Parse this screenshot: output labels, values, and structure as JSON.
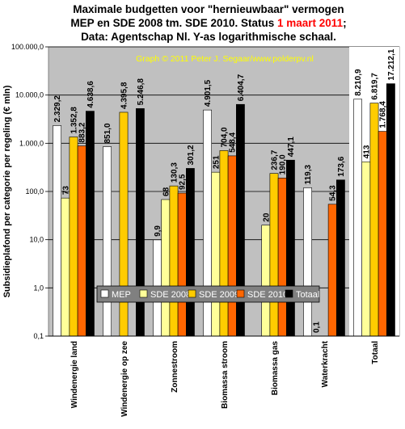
{
  "chart_data": {
    "type": "bar",
    "title_lines": [
      [
        {
          "text": "Maximale budgetten voor \"hernieuwbaar\" vermogen",
          "color": "#000000"
        }
      ],
      [
        {
          "text": "MEP en SDE 2008 tm. SDE 2010. Status ",
          "color": "#000000"
        },
        {
          "text": "1 maart 2011",
          "color": "#ff0000"
        },
        {
          "text": ";",
          "color": "#000000"
        }
      ],
      [
        {
          "text": "Data: Agentschap Nl. Y-as logarithmische schaal.",
          "color": "#000000"
        }
      ]
    ],
    "watermark": "Graph © 2011 Peter J. Segaar/www.polderpv.nl",
    "ylabel": "Subsidieplafond per categorie per regeling (€ mln)",
    "xlabel": "",
    "yscale": "log",
    "ylim": [
      0.1,
      100000
    ],
    "ytick_values": [
      0.1,
      1,
      10,
      100,
      1000,
      10000,
      100000
    ],
    "ytick_labels": [
      "0,1",
      "1,0",
      "10,0",
      "100,0",
      "1.000,0",
      "10.000,0",
      "100.000,0"
    ],
    "grid": true,
    "categories": [
      "Windenergie land",
      "Windenergie op zee",
      "Zonnestroom",
      "Biomassa stroom",
      "Biomassa gas",
      "Waterkracht",
      "Totaal"
    ],
    "series": [
      {
        "name": "MEP",
        "color": "#ffffff",
        "values": [
          2329.2,
          851.0,
          9.9,
          4901.5,
          null,
          119.3,
          8210.9
        ],
        "labels": [
          "2.329,2",
          "851,0",
          "9,9",
          "4.901,5",
          "",
          "119,3",
          "8.210,9"
        ]
      },
      {
        "name": "SDE 2008",
        "color": "#ffff99",
        "values": [
          73,
          null,
          68,
          251,
          20,
          0.1,
          413
        ],
        "labels": [
          "73",
          "",
          "68",
          "251",
          "20",
          "0,1",
          "413"
        ]
      },
      {
        "name": "SDE 2009",
        "color": "#ffcc00",
        "values": [
          1352.8,
          4395.8,
          130.3,
          704.0,
          236.7,
          null,
          6819.7
        ],
        "labels": [
          "1.352,8",
          "4.395,8",
          "130,3",
          "704,0",
          "236,7",
          "",
          "6.819,7"
        ]
      },
      {
        "name": "SDE 2010",
        "color": "#ff6600",
        "values": [
          883.2,
          null,
          92.5,
          548.4,
          190.0,
          54.3,
          1768.4
        ],
        "labels": [
          "883,2",
          "",
          "92,5",
          "548,4",
          "190,0",
          "54,3",
          "1.768,4"
        ]
      },
      {
        "name": "Totaal",
        "color": "#000000",
        "values": [
          4638.6,
          5246.8,
          301.2,
          6404.7,
          447.1,
          173.6,
          17212.1
        ],
        "labels": [
          "4.638,6",
          "5.246,8",
          "301,2",
          "6.404,7",
          "447,1",
          "173,6",
          "17.212,1"
        ]
      }
    ],
    "legend_placement": "lower-center",
    "colors": {
      "plot_background": "#c0c0c0",
      "totaal_background": "#ffffff",
      "grid": "#000000",
      "watermark": "#ffff00",
      "legend_background": "#808080",
      "legend_text": "#ffffff"
    }
  }
}
